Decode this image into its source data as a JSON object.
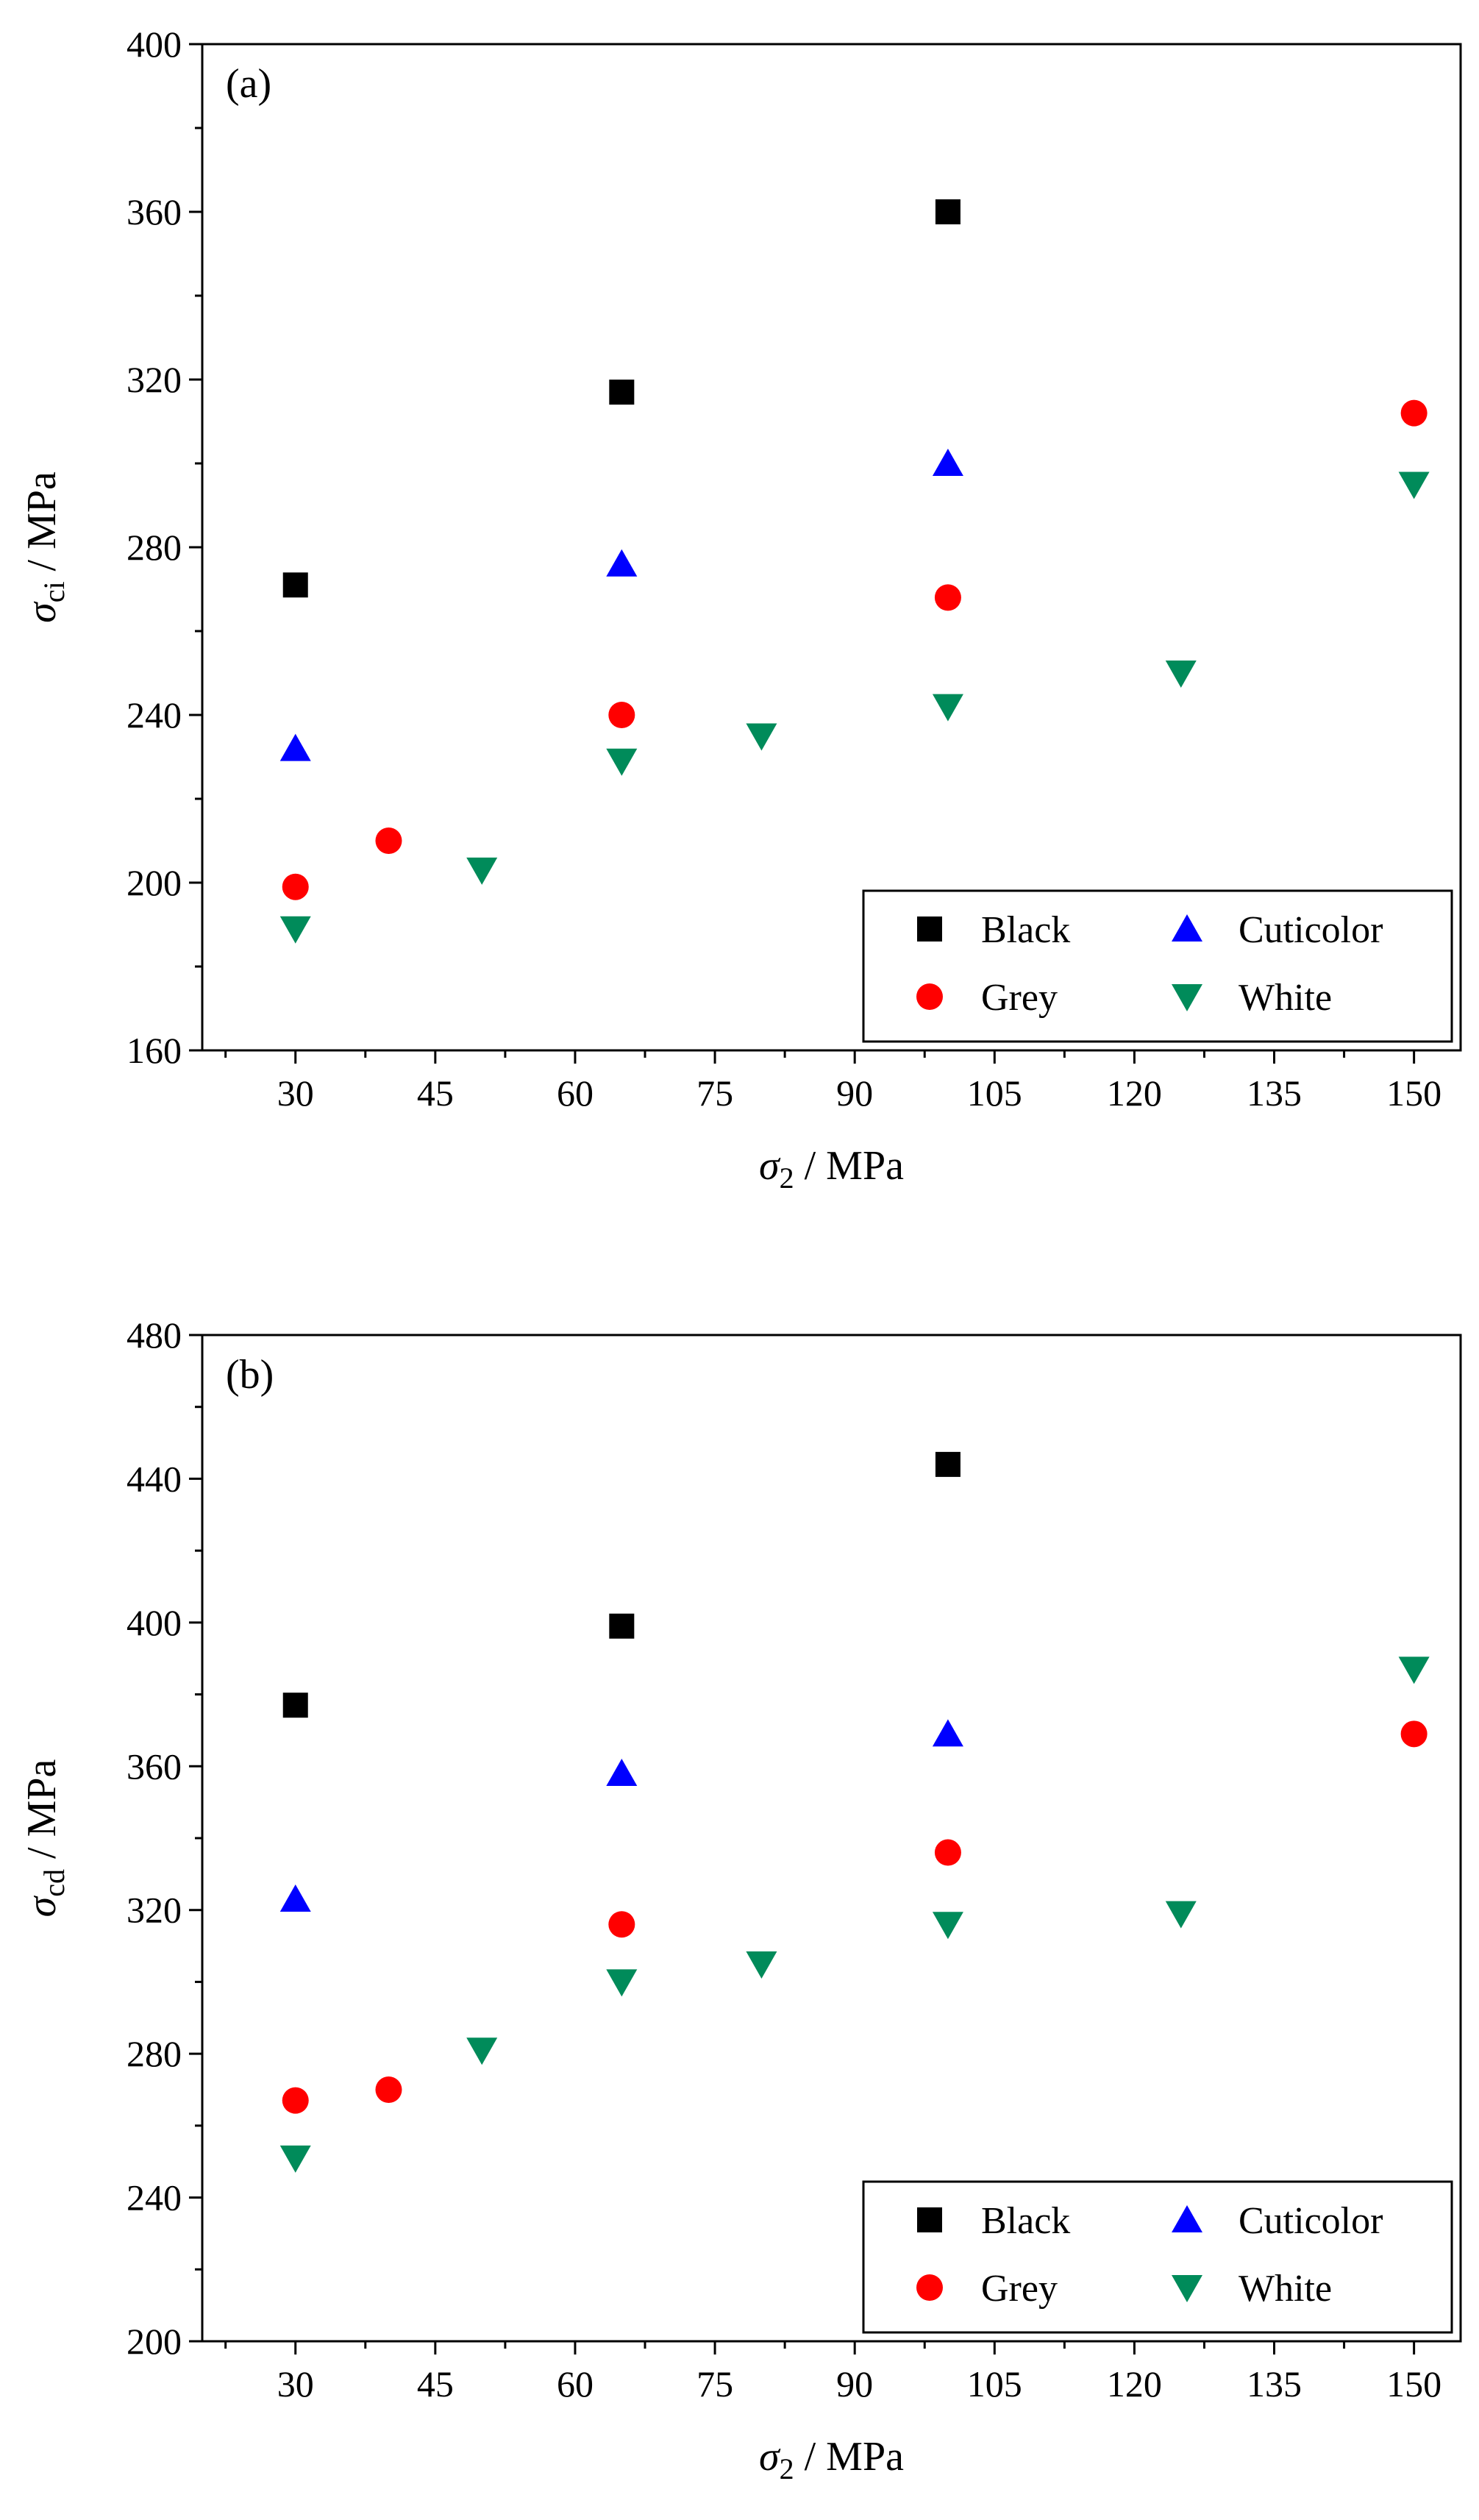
{
  "chart_data": [
    {
      "type": "scatter",
      "panel_label": "(a)",
      "xlabel": {
        "symbol": "σ",
        "sub": "2",
        "unit": " / MPa"
      },
      "ylabel": {
        "symbol": "σ",
        "sub": "ci",
        "unit": " / MPa"
      },
      "xlim": [
        20,
        155
      ],
      "ylim": [
        160,
        400
      ],
      "xticks": [
        30,
        45,
        60,
        75,
        90,
        105,
        120,
        135,
        150
      ],
      "yticks": [
        160,
        200,
        240,
        280,
        320,
        360,
        400
      ],
      "legend_position": "bottom-right",
      "series": [
        {
          "name": "Black",
          "marker": "square",
          "color": "#000000",
          "x": [
            30,
            65,
            100
          ],
          "y": [
            271,
            317,
            360
          ]
        },
        {
          "name": "Cuticolor",
          "marker": "triangle-up",
          "color": "#0000ff",
          "x": [
            30,
            65,
            100
          ],
          "y": [
            232,
            276,
            300
          ]
        },
        {
          "name": "Grey",
          "marker": "circle",
          "color": "#ff0000",
          "x": [
            30,
            40,
            65,
            100,
            150
          ],
          "y": [
            199,
            210,
            240,
            268,
            312
          ]
        },
        {
          "name": "White",
          "marker": "triangle-down",
          "color": "#008b5a",
          "x": [
            30,
            50,
            65,
            80,
            100,
            125,
            150
          ],
          "y": [
            189,
            203,
            229,
            235,
            242,
            250,
            295
          ]
        }
      ]
    },
    {
      "type": "scatter",
      "panel_label": "(b)",
      "xlabel": {
        "symbol": "σ",
        "sub": "2",
        "unit": " / MPa"
      },
      "ylabel": {
        "symbol": "σ",
        "sub": "cd",
        "unit": " / MPa"
      },
      "xlim": [
        20,
        155
      ],
      "ylim": [
        200,
        480
      ],
      "xticks": [
        30,
        45,
        60,
        75,
        90,
        105,
        120,
        135,
        150
      ],
      "yticks": [
        200,
        240,
        280,
        320,
        360,
        400,
        440,
        480
      ],
      "legend_position": "bottom-right",
      "series": [
        {
          "name": "Black",
          "marker": "square",
          "color": "#000000",
          "x": [
            30,
            65,
            100
          ],
          "y": [
            377,
            399,
            444
          ]
        },
        {
          "name": "Cuticolor",
          "marker": "triangle-up",
          "color": "#0000ff",
          "x": [
            30,
            65,
            100
          ],
          "y": [
            323,
            358,
            369
          ]
        },
        {
          "name": "Grey",
          "marker": "circle",
          "color": "#ff0000",
          "x": [
            30,
            40,
            65,
            100,
            150
          ],
          "y": [
            267,
            270,
            316,
            336,
            369
          ]
        },
        {
          "name": "White",
          "marker": "triangle-down",
          "color": "#008b5a",
          "x": [
            30,
            50,
            65,
            80,
            100,
            125,
            150
          ],
          "y": [
            251,
            281,
            300,
            305,
            316,
            319,
            387
          ]
        }
      ]
    }
  ]
}
